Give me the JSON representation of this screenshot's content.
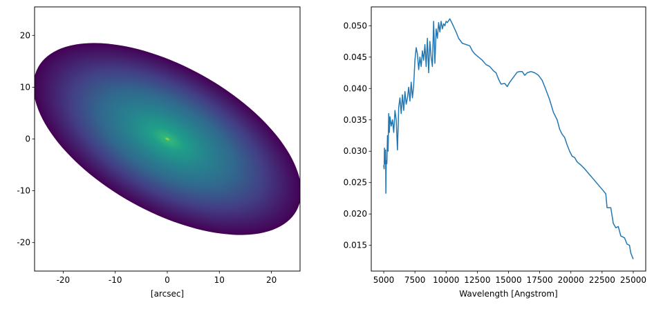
{
  "chart_data": [
    {
      "type": "image",
      "xlabel": "[arcsec]",
      "xlim": [
        -25.5,
        25.5
      ],
      "ylim": [
        -25.5,
        25.5
      ],
      "xticks": [
        -20,
        -10,
        0,
        10,
        20
      ],
      "yticks": [
        -20,
        -10,
        0,
        10,
        20
      ]
    },
    {
      "type": "line",
      "xlabel": "Wavelength [Angstrom]",
      "color": "#1f77b4",
      "xlim": [
        4000,
        26000
      ],
      "ylim": [
        0.0109,
        0.053
      ],
      "xticks": [
        5000,
        7500,
        10000,
        12500,
        15000,
        17500,
        20000,
        22500,
        25000
      ],
      "yticks": [
        0.015,
        {
          "value": 0.02,
          "label": "0.020"
        },
        0.025,
        {
          "value": 0.03,
          "label": "0.030"
        },
        0.035,
        {
          "value": 0.04,
          "label": "0.040"
        },
        0.045,
        {
          "value": 0.05,
          "label": "0.050"
        }
      ],
      "x": [
        5000,
        5030,
        5060,
        5100,
        5150,
        5170,
        5200,
        5250,
        5300,
        5350,
        5400,
        5450,
        5500,
        5600,
        5700,
        5800,
        5900,
        6000,
        6100,
        6200,
        6300,
        6400,
        6500,
        6600,
        6700,
        6800,
        6900,
        7000,
        7100,
        7200,
        7300,
        7400,
        7500,
        7600,
        7700,
        7800,
        7900,
        8000,
        8100,
        8200,
        8300,
        8400,
        8500,
        8600,
        8700,
        8800,
        8900,
        9000,
        9100,
        9200,
        9300,
        9400,
        9500,
        9600,
        9700,
        9800,
        9900,
        10000,
        10100,
        10300,
        10500,
        10800,
        11000,
        11300,
        11600,
        11900,
        12100,
        12300,
        12600,
        12900,
        13200,
        13500,
        13800,
        14000,
        14200,
        14400,
        14700,
        14900,
        15100,
        15400,
        15700,
        15900,
        16100,
        16300,
        16500,
        16800,
        17100,
        17400,
        17700,
        18000,
        18300,
        18600,
        18900,
        19100,
        19300,
        19500,
        19700,
        19900,
        20100,
        20300,
        20500,
        20800,
        21100,
        21400,
        21700,
        22000,
        22300,
        22600,
        22800,
        22900,
        23200,
        23400,
        23600,
        23800,
        24000,
        24300,
        24500,
        24700,
        24800,
        25000
      ],
      "values": [
        0.0278,
        0.0272,
        0.0305,
        0.028,
        0.0302,
        0.0233,
        0.0285,
        0.028,
        0.0325,
        0.03,
        0.036,
        0.033,
        0.0355,
        0.034,
        0.035,
        0.033,
        0.0365,
        0.035,
        0.0302,
        0.037,
        0.0385,
        0.036,
        0.039,
        0.0365,
        0.0395,
        0.0375,
        0.0385,
        0.0402,
        0.038,
        0.041,
        0.0385,
        0.0405,
        0.0445,
        0.0465,
        0.0455,
        0.043,
        0.045,
        0.0435,
        0.046,
        0.0445,
        0.047,
        0.0435,
        0.048,
        0.0425,
        0.0475,
        0.045,
        0.0435,
        0.0507,
        0.044,
        0.0495,
        0.048,
        0.0505,
        0.049,
        0.0507,
        0.0495,
        0.0503,
        0.05,
        0.0507,
        0.0505,
        0.0511,
        0.0503,
        0.049,
        0.048,
        0.0472,
        0.047,
        0.0468,
        0.046,
        0.0455,
        0.045,
        0.0445,
        0.0438,
        0.0435,
        0.0428,
        0.0425,
        0.0415,
        0.0407,
        0.0408,
        0.0403,
        0.041,
        0.0418,
        0.0426,
        0.0427,
        0.0427,
        0.0421,
        0.0425,
        0.0427,
        0.0425,
        0.0421,
        0.0413,
        0.0398,
        0.0382,
        0.0362,
        0.035,
        0.0335,
        0.0327,
        0.0322,
        0.031,
        0.03,
        0.0292,
        0.029,
        0.0283,
        0.0278,
        0.0272,
        0.0265,
        0.0258,
        0.0251,
        0.0244,
        0.0237,
        0.0232,
        0.021,
        0.021,
        0.0185,
        0.0178,
        0.018,
        0.0165,
        0.0162,
        0.0152,
        0.015,
        0.0138,
        0.0128
      ]
    }
  ]
}
